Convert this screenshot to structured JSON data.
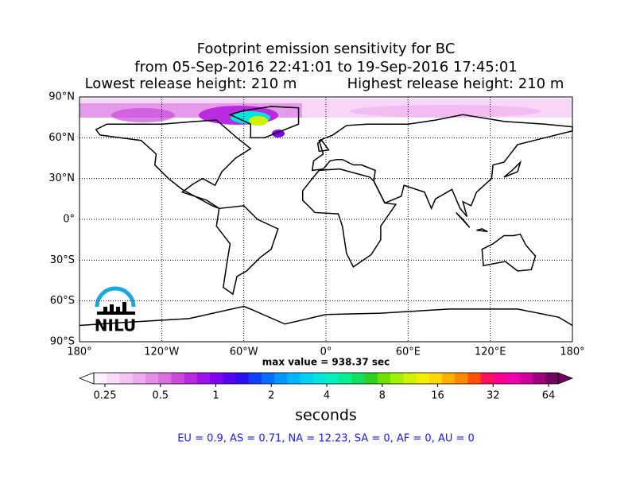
{
  "header": {
    "title_lines": [
      "Footprint emission sensitivity for BC",
      "from 05-Sep-2016 22:41:01 to 19-Sep-2016 17:45:01"
    ],
    "release_low": "Lowest release height: 210 m",
    "release_high": "Highest release height: 210 m"
  },
  "map": {
    "lat_ticks": [
      {
        "value": 90,
        "label": "90°N"
      },
      {
        "value": 60,
        "label": "60°N"
      },
      {
        "value": 30,
        "label": "30°N"
      },
      {
        "value": 0,
        "label": "0°"
      },
      {
        "value": -30,
        "label": "30°S"
      },
      {
        "value": -60,
        "label": "60°S"
      },
      {
        "value": -90,
        "label": "90°S"
      }
    ],
    "lon_ticks": [
      {
        "value": -180,
        "label": "180°"
      },
      {
        "value": -120,
        "label": "120°W"
      },
      {
        "value": -60,
        "label": "60°W"
      },
      {
        "value": 0,
        "label": "0°"
      },
      {
        "value": 60,
        "label": "60°E"
      },
      {
        "value": 120,
        "label": "120°E"
      },
      {
        "value": 180,
        "label": "180°"
      }
    ],
    "max_value": "max value = 938.37 sec",
    "logo": "NILU"
  },
  "colorbar": {
    "ticks": [
      0.25,
      0.5,
      1,
      2,
      4,
      8,
      16,
      32,
      64
    ],
    "label": "seconds",
    "log_scale": true,
    "colors": [
      "#fdf0fd",
      "#f8dcf8",
      "#f3c4f3",
      "#eeaaee",
      "#e58ee8",
      "#d96fe0",
      "#c94bdb",
      "#b92ae0",
      "#a011e8",
      "#8000f0",
      "#5a00f0",
      "#2a10f0",
      "#1040ff",
      "#0070ff",
      "#0098ff",
      "#00b8ff",
      "#00d0f0",
      "#00e4e0",
      "#00f0c0",
      "#00f090",
      "#10e060",
      "#30d020",
      "#70e000",
      "#a0f000",
      "#d0f000",
      "#f0f000",
      "#ffd800",
      "#ffb000",
      "#ff8800",
      "#ff5000",
      "#ff1060",
      "#ff0090",
      "#f000b0",
      "#d000a0",
      "#a00080",
      "#700060"
    ]
  },
  "footer": "EU = 0.9,  AS = 0.71,  NA = 12.23,  SA = 0,  AF = 0,  AU = 0"
}
